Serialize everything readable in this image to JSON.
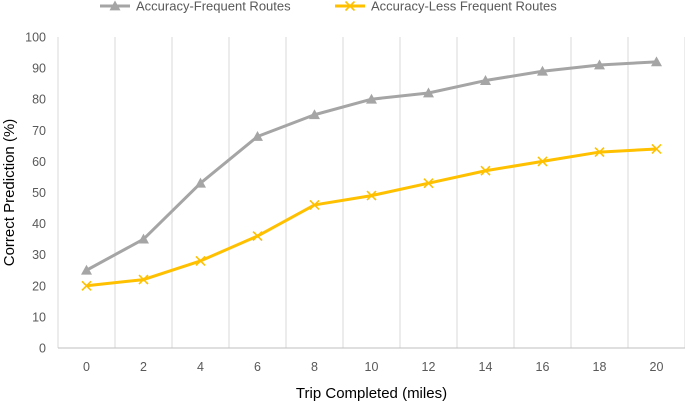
{
  "chart_data": {
    "type": "line",
    "xlabel": "Trip Completed (miles)",
    "ylabel": "Correct Prediction (%)",
    "x": [
      0,
      2,
      4,
      6,
      8,
      10,
      12,
      14,
      16,
      18,
      20
    ],
    "ylim": [
      0,
      100
    ],
    "yticks": [
      0,
      10,
      20,
      30,
      40,
      50,
      60,
      70,
      80,
      90,
      100
    ],
    "grid": "vertical",
    "legend_position": "top",
    "series": [
      {
        "name": "Accuracy-Frequent Routes",
        "color": "#a5a5a5",
        "marker": "triangle",
        "values": [
          25,
          35,
          53,
          68,
          75,
          80,
          82,
          86,
          89,
          91,
          92
        ]
      },
      {
        "name": "Accuracy-Less Frequent Routes",
        "color": "#ffc000",
        "marker": "x",
        "values": [
          20,
          22,
          28,
          36,
          46,
          49,
          53,
          57,
          60,
          63,
          64
        ]
      }
    ]
  }
}
